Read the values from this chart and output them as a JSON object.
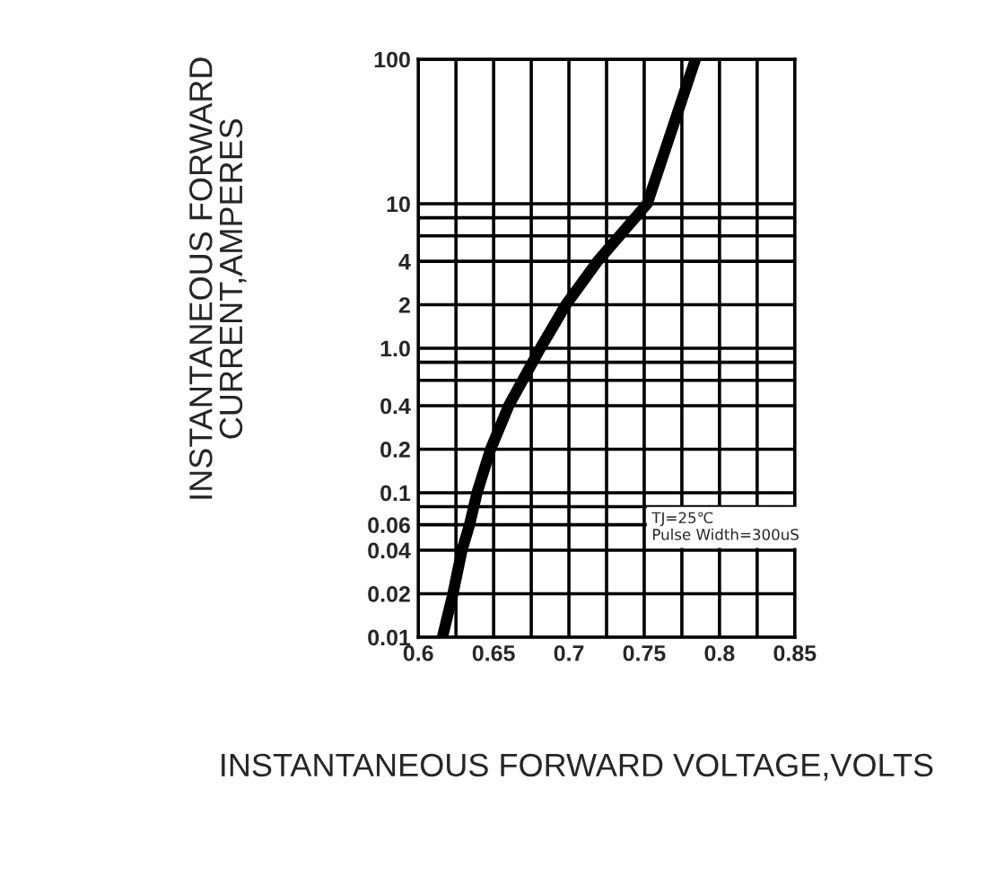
{
  "chart_data": {
    "type": "line",
    "xlabel": "INSTANTANEOUS FORWARD VOLTAGE,VOLTS",
    "ylabel": "INSTANTANEOUS FORWARD\nCURRENT,AMPERES",
    "x": [
      0.616,
      0.623,
      0.629,
      0.634,
      0.639,
      0.648,
      0.66,
      0.681,
      0.698,
      0.719,
      0.752,
      0.784
    ],
    "series": [
      {
        "color": "#000000",
        "values": [
          0.01,
          0.02,
          0.04,
          0.06,
          0.1,
          0.2,
          0.4,
          1.0,
          2,
          4,
          10,
          100
        ]
      }
    ],
    "log": "y",
    "xlim": [
      0.6,
      0.85
    ],
    "ylim": [
      0.01,
      100
    ],
    "xticks": [
      0.6,
      {
        "value": 0.625,
        "label": null
      },
      0.65,
      {
        "value": 0.675,
        "label": null
      },
      0.7,
      {
        "value": 0.725,
        "label": null
      },
      0.75,
      {
        "value": 0.775,
        "label": null
      },
      0.8,
      {
        "value": 0.825,
        "label": null
      },
      0.85
    ],
    "yticks": [
      0.01,
      0.02,
      0.04,
      0.06,
      {
        "value": 0.08,
        "label": null
      },
      0.1,
      0.2,
      0.4,
      {
        "value": 0.6,
        "label": null
      },
      {
        "value": 0.8,
        "label": null
      },
      {
        "value": 1,
        "label": "1.0"
      },
      2,
      4,
      {
        "value": 6,
        "label": null
      },
      {
        "value": 8,
        "label": null
      },
      10,
      100
    ],
    "grid": true,
    "marker": "none",
    "line_style": "solid",
    "annotations": [
      "TJ=25℃\nPulse Width=300uS"
    ]
  }
}
